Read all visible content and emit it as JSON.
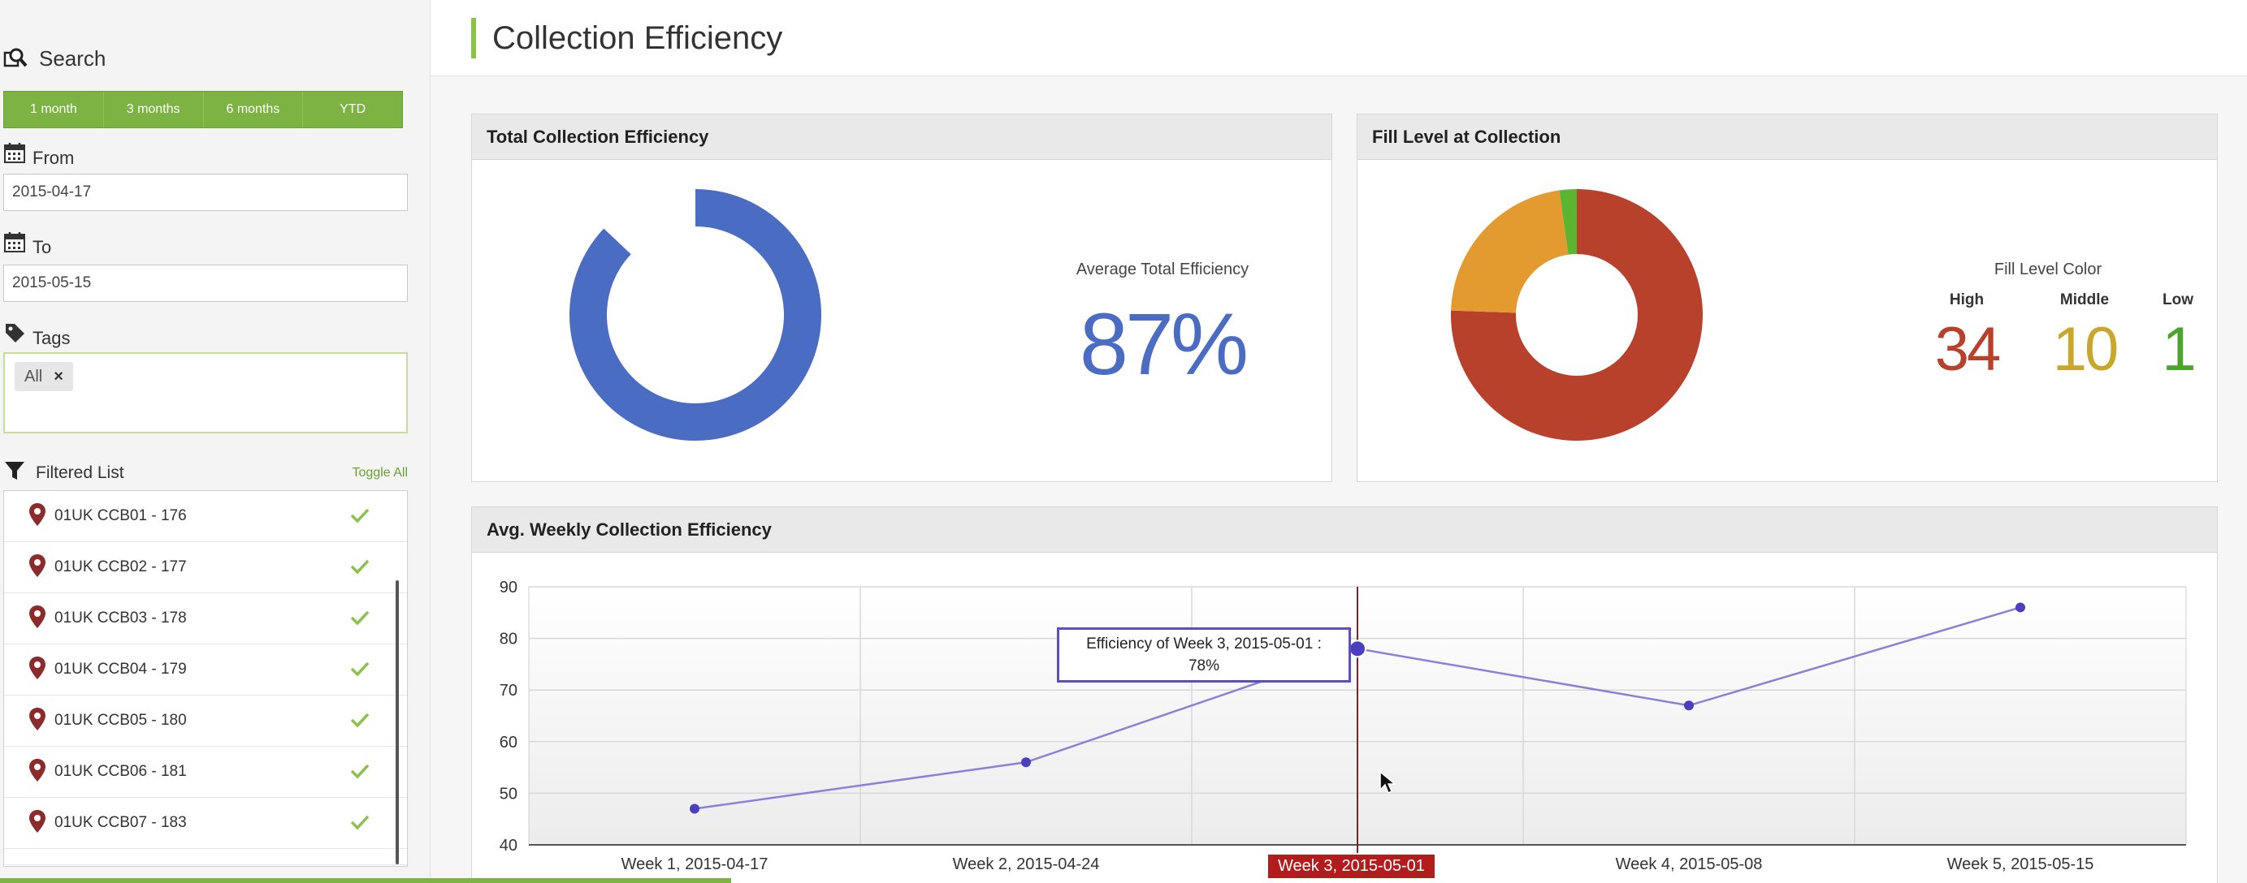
{
  "sidebar": {
    "search_label": "Search",
    "ranges": [
      "1 month",
      "3 months",
      "6 months",
      "YTD"
    ],
    "from_label": "From",
    "from_value": "2015-04-17",
    "to_label": "To",
    "to_value": "2015-05-15",
    "tags_label": "Tags",
    "tag_chip": "All",
    "tag_remove": "×",
    "filtered_label": "Filtered List",
    "toggle_all": "Toggle All",
    "items": [
      {
        "name": "01UK CCB01 - 176"
      },
      {
        "name": "01UK CCB02 - 177"
      },
      {
        "name": "01UK CCB03 - 178"
      },
      {
        "name": "01UK CCB04 - 179"
      },
      {
        "name": "01UK CCB05 - 180"
      },
      {
        "name": "01UK CCB06 - 181"
      },
      {
        "name": "01UK CCB07 - 183"
      }
    ]
  },
  "header": {
    "title": "Collection Efficiency"
  },
  "total_efficiency": {
    "title": "Total Collection Efficiency",
    "avg_label": "Average Total Efficiency",
    "avg_value": "87%",
    "percent": 87,
    "color": "#4a6cc2"
  },
  "fill_level": {
    "title": "Fill Level at Collection",
    "legend_title": "Fill Level Color",
    "high_label": "High",
    "high_value": "34",
    "middle_label": "Middle",
    "middle_value": "10",
    "low_label": "Low",
    "low_value": "1",
    "colors": {
      "high": "#b8412b",
      "middle": "#e39a2e",
      "low": "#5cb531"
    }
  },
  "weekly": {
    "title": "Avg. Weekly Collection Efficiency",
    "tooltip_line1": "Efficiency of Week 3, 2015-05-01 :",
    "tooltip_line2": "78%",
    "highlight_label": "Week 3, 2015-05-01"
  },
  "chart_data": {
    "type": "line",
    "categories": [
      "Week 1, 2015-04-17",
      "Week 2, 2015-04-24",
      "Week 3, 2015-05-01",
      "Week 4, 2015-05-08",
      "Week 5, 2015-05-15"
    ],
    "values": [
      47,
      56,
      78,
      67,
      86
    ],
    "ylim": [
      40,
      90
    ],
    "yticks": [
      "90",
      "80",
      "70",
      "60",
      "50",
      "40"
    ],
    "grid": true,
    "line_color": "#8a80d6",
    "point_color": "#4b3fbf"
  }
}
